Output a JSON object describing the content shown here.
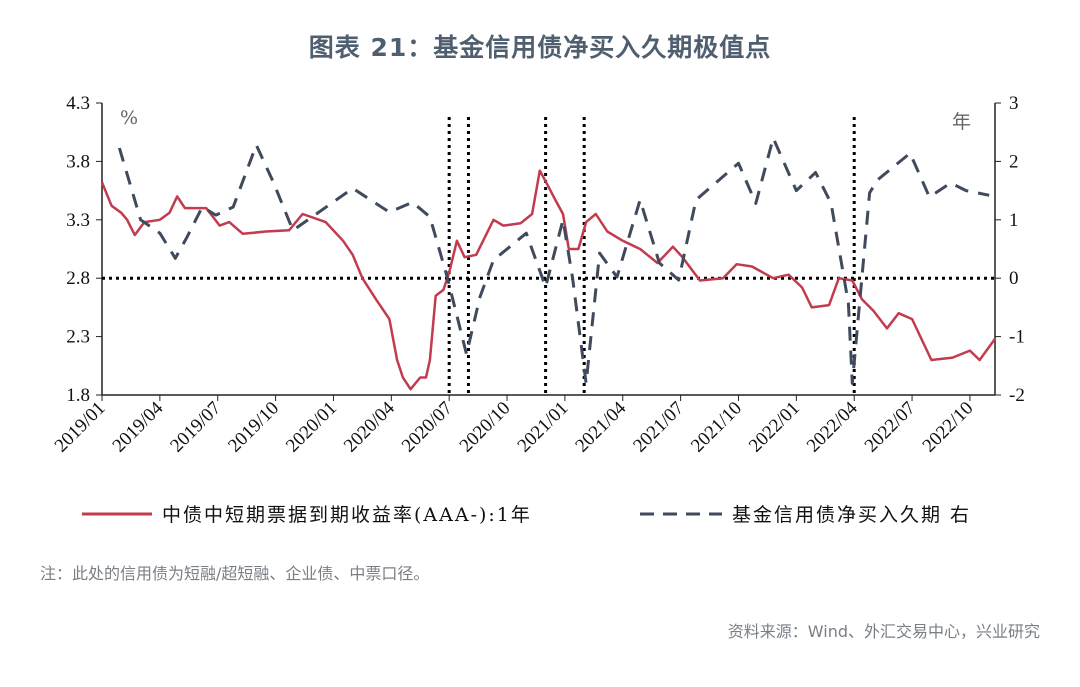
{
  "chart_data": {
    "type": "line",
    "title": "图表 21：基金信用债净买入久期极值点",
    "left_unit": "%",
    "right_unit": "年",
    "x_tick_labels": [
      "2019/01",
      "2019/04",
      "2019/07",
      "2019/10",
      "2020/01",
      "2020/04",
      "2020/07",
      "2020/10",
      "2021/01",
      "2021/04",
      "2021/07",
      "2021/10",
      "2022/01",
      "2022/04",
      "2022/07",
      "2022/10"
    ],
    "x_unit": "months since 2019/01",
    "xlim": [
      0,
      46.3
    ],
    "ylim_left": [
      1.8,
      4.3
    ],
    "ylim_right": [
      -2,
      3
    ],
    "yticks_left": [
      "4.3",
      "3.8",
      "3.3",
      "2.8",
      "2.3",
      "1.8"
    ],
    "yticks_right": [
      "3",
      "2",
      "1",
      "0",
      "-1",
      "-2"
    ],
    "reference_lines": {
      "horizontal_left": 2.8,
      "vertical_months": [
        18,
        19,
        23,
        25,
        39
      ]
    },
    "series": [
      {
        "name": "中债中短期票据到期收益率(AAA-):1年",
        "axis": "left",
        "color": "#c23b4e",
        "style": "solid",
        "points": [
          [
            0,
            3.62
          ],
          [
            0.5,
            3.42
          ],
          [
            1,
            3.36
          ],
          [
            1.3,
            3.3
          ],
          [
            1.7,
            3.17
          ],
          [
            2.2,
            3.28
          ],
          [
            3,
            3.3
          ],
          [
            3.5,
            3.36
          ],
          [
            3.9,
            3.5
          ],
          [
            4.3,
            3.4
          ],
          [
            5.4,
            3.4
          ],
          [
            6.1,
            3.25
          ],
          [
            6.6,
            3.28
          ],
          [
            7.3,
            3.18
          ],
          [
            8.5,
            3.2
          ],
          [
            9.7,
            3.21
          ],
          [
            10.4,
            3.35
          ],
          [
            11.6,
            3.28
          ],
          [
            12.5,
            3.12
          ],
          [
            13,
            3.0
          ],
          [
            13.5,
            2.8
          ],
          [
            14.2,
            2.62
          ],
          [
            14.9,
            2.45
          ],
          [
            15.3,
            2.1
          ],
          [
            15.6,
            1.95
          ],
          [
            16,
            1.85
          ],
          [
            16.5,
            1.95
          ],
          [
            16.8,
            1.95
          ],
          [
            17,
            2.1
          ],
          [
            17.3,
            2.65
          ],
          [
            17.7,
            2.7
          ],
          [
            18,
            2.85
          ],
          [
            18.4,
            3.12
          ],
          [
            18.8,
            2.98
          ],
          [
            19.4,
            3.0
          ],
          [
            20.3,
            3.3
          ],
          [
            20.8,
            3.25
          ],
          [
            21.7,
            3.27
          ],
          [
            22.3,
            3.35
          ],
          [
            22.7,
            3.72
          ],
          [
            23.1,
            3.6
          ],
          [
            23.5,
            3.47
          ],
          [
            23.9,
            3.35
          ],
          [
            24.2,
            3.05
          ],
          [
            24.7,
            3.05
          ],
          [
            25.1,
            3.28
          ],
          [
            25.6,
            3.35
          ],
          [
            26.2,
            3.2
          ],
          [
            27,
            3.12
          ],
          [
            27.9,
            3.05
          ],
          [
            28.8,
            2.93
          ],
          [
            29.6,
            3.07
          ],
          [
            30.1,
            2.98
          ],
          [
            31,
            2.78
          ],
          [
            32.2,
            2.8
          ],
          [
            32.9,
            2.92
          ],
          [
            33.7,
            2.9
          ],
          [
            34.8,
            2.8
          ],
          [
            35.6,
            2.83
          ],
          [
            36.3,
            2.72
          ],
          [
            36.8,
            2.55
          ],
          [
            37.7,
            2.57
          ],
          [
            38.2,
            2.8
          ],
          [
            38.9,
            2.78
          ],
          [
            39.4,
            2.62
          ],
          [
            40,
            2.52
          ],
          [
            40.7,
            2.37
          ],
          [
            41.3,
            2.5
          ],
          [
            42,
            2.45
          ],
          [
            43,
            2.1
          ],
          [
            44.1,
            2.12
          ],
          [
            45,
            2.18
          ],
          [
            45.5,
            2.1
          ],
          [
            46.3,
            2.28
          ]
        ]
      },
      {
        "name": "基金信用债净买入久期 右",
        "axis": "right",
        "color": "#3f4a5c",
        "style": "dashed",
        "points": [
          [
            0.9,
            2.23
          ],
          [
            2.0,
            1.0
          ],
          [
            3.0,
            0.77
          ],
          [
            3.8,
            0.34
          ],
          [
            4.4,
            0.7
          ],
          [
            5.2,
            1.22
          ],
          [
            5.9,
            1.08
          ],
          [
            6.8,
            1.22
          ],
          [
            8.0,
            2.28
          ],
          [
            8.9,
            1.63
          ],
          [
            9.9,
            0.82
          ],
          [
            10.9,
            1.05
          ],
          [
            13,
            1.54
          ],
          [
            14.9,
            1.13
          ],
          [
            16.1,
            1.3
          ],
          [
            17,
            1.05
          ],
          [
            17.9,
            0.02
          ],
          [
            18.9,
            -1.3
          ],
          [
            19.6,
            -0.32
          ],
          [
            20.3,
            0.31
          ],
          [
            22.0,
            0.77
          ],
          [
            23.0,
            -0.15
          ],
          [
            23.9,
            1.0
          ],
          [
            24.4,
            0.0
          ],
          [
            25.1,
            -1.8
          ],
          [
            25.8,
            0.43
          ],
          [
            26.7,
            0.02
          ],
          [
            27.9,
            1.34
          ],
          [
            28.9,
            0.26
          ],
          [
            29.9,
            -0.03
          ],
          [
            30.8,
            1.34
          ],
          [
            33.0,
            1.97
          ],
          [
            33.9,
            1.28
          ],
          [
            34.8,
            2.4
          ],
          [
            36.0,
            1.5
          ],
          [
            37.0,
            1.81
          ],
          [
            37.8,
            1.28
          ],
          [
            38.7,
            -0.43
          ],
          [
            38.9,
            -1.8
          ],
          [
            39.8,
            1.46
          ],
          [
            40.2,
            1.68
          ],
          [
            41.9,
            2.14
          ],
          [
            42.9,
            1.39
          ],
          [
            44,
            1.63
          ],
          [
            44.8,
            1.5
          ],
          [
            46,
            1.42
          ]
        ]
      }
    ],
    "legend": {
      "placement": "bottom",
      "items": [
        "中债中短期票据到期收益率(AAA-):1年",
        "基金信用债净买入久期 右"
      ]
    }
  },
  "note": "注：此处的信用债为短融/超短融、企业债、中票口径。",
  "source": "资料来源：Wind、外汇交易中心，兴业研究"
}
